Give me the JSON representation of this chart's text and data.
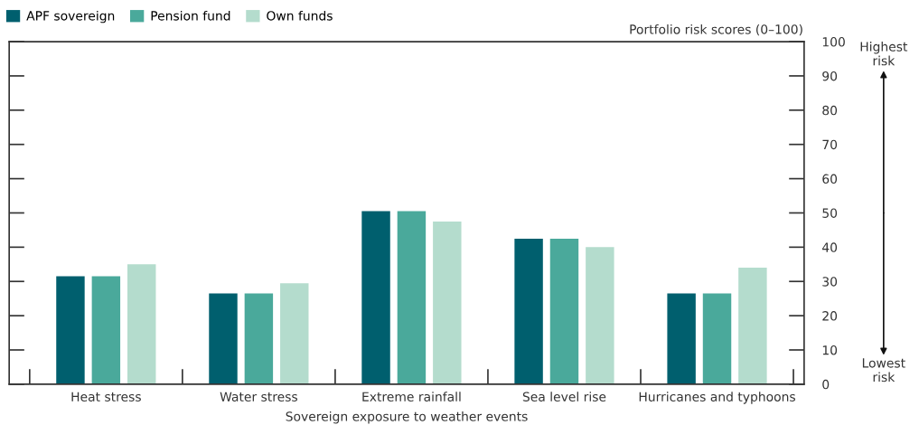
{
  "chart_data": {
    "type": "bar",
    "categories": [
      "Heat stress",
      "Water stress",
      "Extreme rainfall",
      "Sea level rise",
      "Hurricanes and typhoons"
    ],
    "series": [
      {
        "name": "APF sovereign",
        "color": "#005f6e",
        "values": [
          31.5,
          26.5,
          50.5,
          42.5,
          26.5
        ]
      },
      {
        "name": "Pension fund",
        "color": "#4aa99b",
        "values": [
          31.5,
          26.5,
          50.5,
          42.5,
          26.5
        ]
      },
      {
        "name": "Own funds",
        "color": "#b4dccd",
        "values": [
          35,
          29.5,
          47.5,
          40,
          34
        ]
      }
    ],
    "xlabel": "Sovereign exposure to weather events",
    "ylabel": "Portfolio risk scores (0–100)",
    "ylim": [
      0,
      100
    ],
    "yticks": [
      0,
      10,
      20,
      30,
      40,
      50,
      60,
      70,
      80,
      90,
      100
    ],
    "annotations": [
      "Highest\nrisk",
      "Lowest\nrisk"
    ],
    "grid": false,
    "legend": "top left"
  }
}
